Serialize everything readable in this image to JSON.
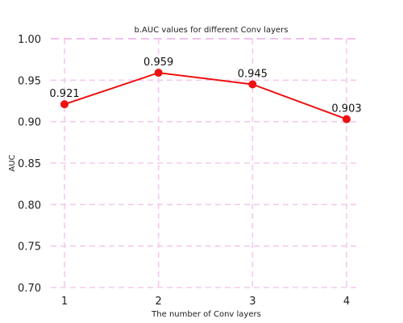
{
  "chart_data": {
    "type": "line",
    "title": "b.AUC values for different Conv layers",
    "xlabel": "The number of Conv layers",
    "ylabel": "AUC",
    "x": [
      1,
      2,
      3,
      4
    ],
    "x_tick_labels": [
      "1",
      "2",
      "3",
      "4"
    ],
    "y_ticks": [
      0.7,
      0.75,
      0.8,
      0.85,
      0.9,
      0.95,
      1.0
    ],
    "y_tick_labels": [
      "0.70",
      "0.75",
      "0.80",
      "0.85",
      "0.90",
      "0.95",
      "1.00"
    ],
    "ylim": [
      0.7,
      1.0
    ],
    "series": [
      {
        "values": [
          0.921,
          0.959,
          0.945,
          0.903
        ],
        "labels": [
          "0.921",
          "0.959",
          "0.945",
          "0.903"
        ]
      }
    ],
    "grid": true,
    "colors": {
      "line": "#ee1111",
      "grid": "#f5c8ef",
      "top_line": "#e99be2"
    }
  }
}
